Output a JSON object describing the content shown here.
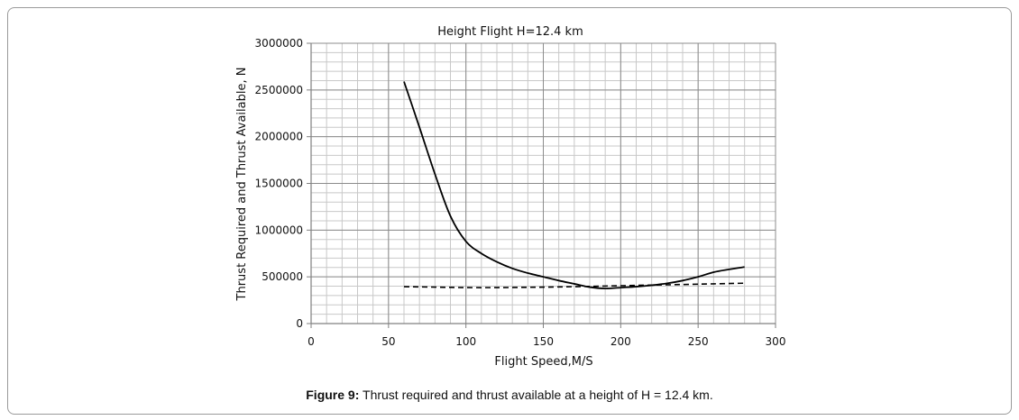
{
  "caption": {
    "prefix": "Figure 9:",
    "text": " Thrust required and thrust available at a height of H = 12.4 km."
  },
  "chart_data": {
    "type": "line",
    "title": "Height Flight H=12.4 km",
    "xlabel": "Flight Speed,M/S",
    "ylabel": "Thrust Required and Thrust Available, N",
    "xlim": [
      0,
      300
    ],
    "ylim": [
      0,
      3000000
    ],
    "x_ticks": [
      0,
      50,
      100,
      150,
      200,
      250,
      300
    ],
    "y_ticks": [
      0,
      500000,
      1000000,
      1500000,
      2000000,
      2500000,
      3000000
    ],
    "x_minor_step": 10,
    "y_minor_step": 100000,
    "grid": true,
    "legend": "none",
    "series": [
      {
        "style": "solid",
        "color": "#000000",
        "x": [
          60,
          70,
          80,
          90,
          100,
          110,
          120,
          130,
          140,
          150,
          160,
          170,
          180,
          190,
          200,
          210,
          220,
          230,
          240,
          250,
          260,
          270,
          280
        ],
        "y": [
          2590000,
          2100000,
          1600000,
          1150000,
          880000,
          750000,
          660000,
          590000,
          540000,
          500000,
          460000,
          425000,
          390000,
          375000,
          385000,
          395000,
          410000,
          430000,
          460000,
          500000,
          550000,
          580000,
          605000
        ]
      },
      {
        "style": "dashed",
        "color": "#000000",
        "x": [
          60,
          80,
          100,
          120,
          140,
          160,
          180,
          200,
          220,
          240,
          260,
          280
        ],
        "y": [
          395000,
          390000,
          385000,
          385000,
          388000,
          392000,
          398000,
          405000,
          412000,
          418000,
          425000,
          432000
        ]
      }
    ]
  }
}
